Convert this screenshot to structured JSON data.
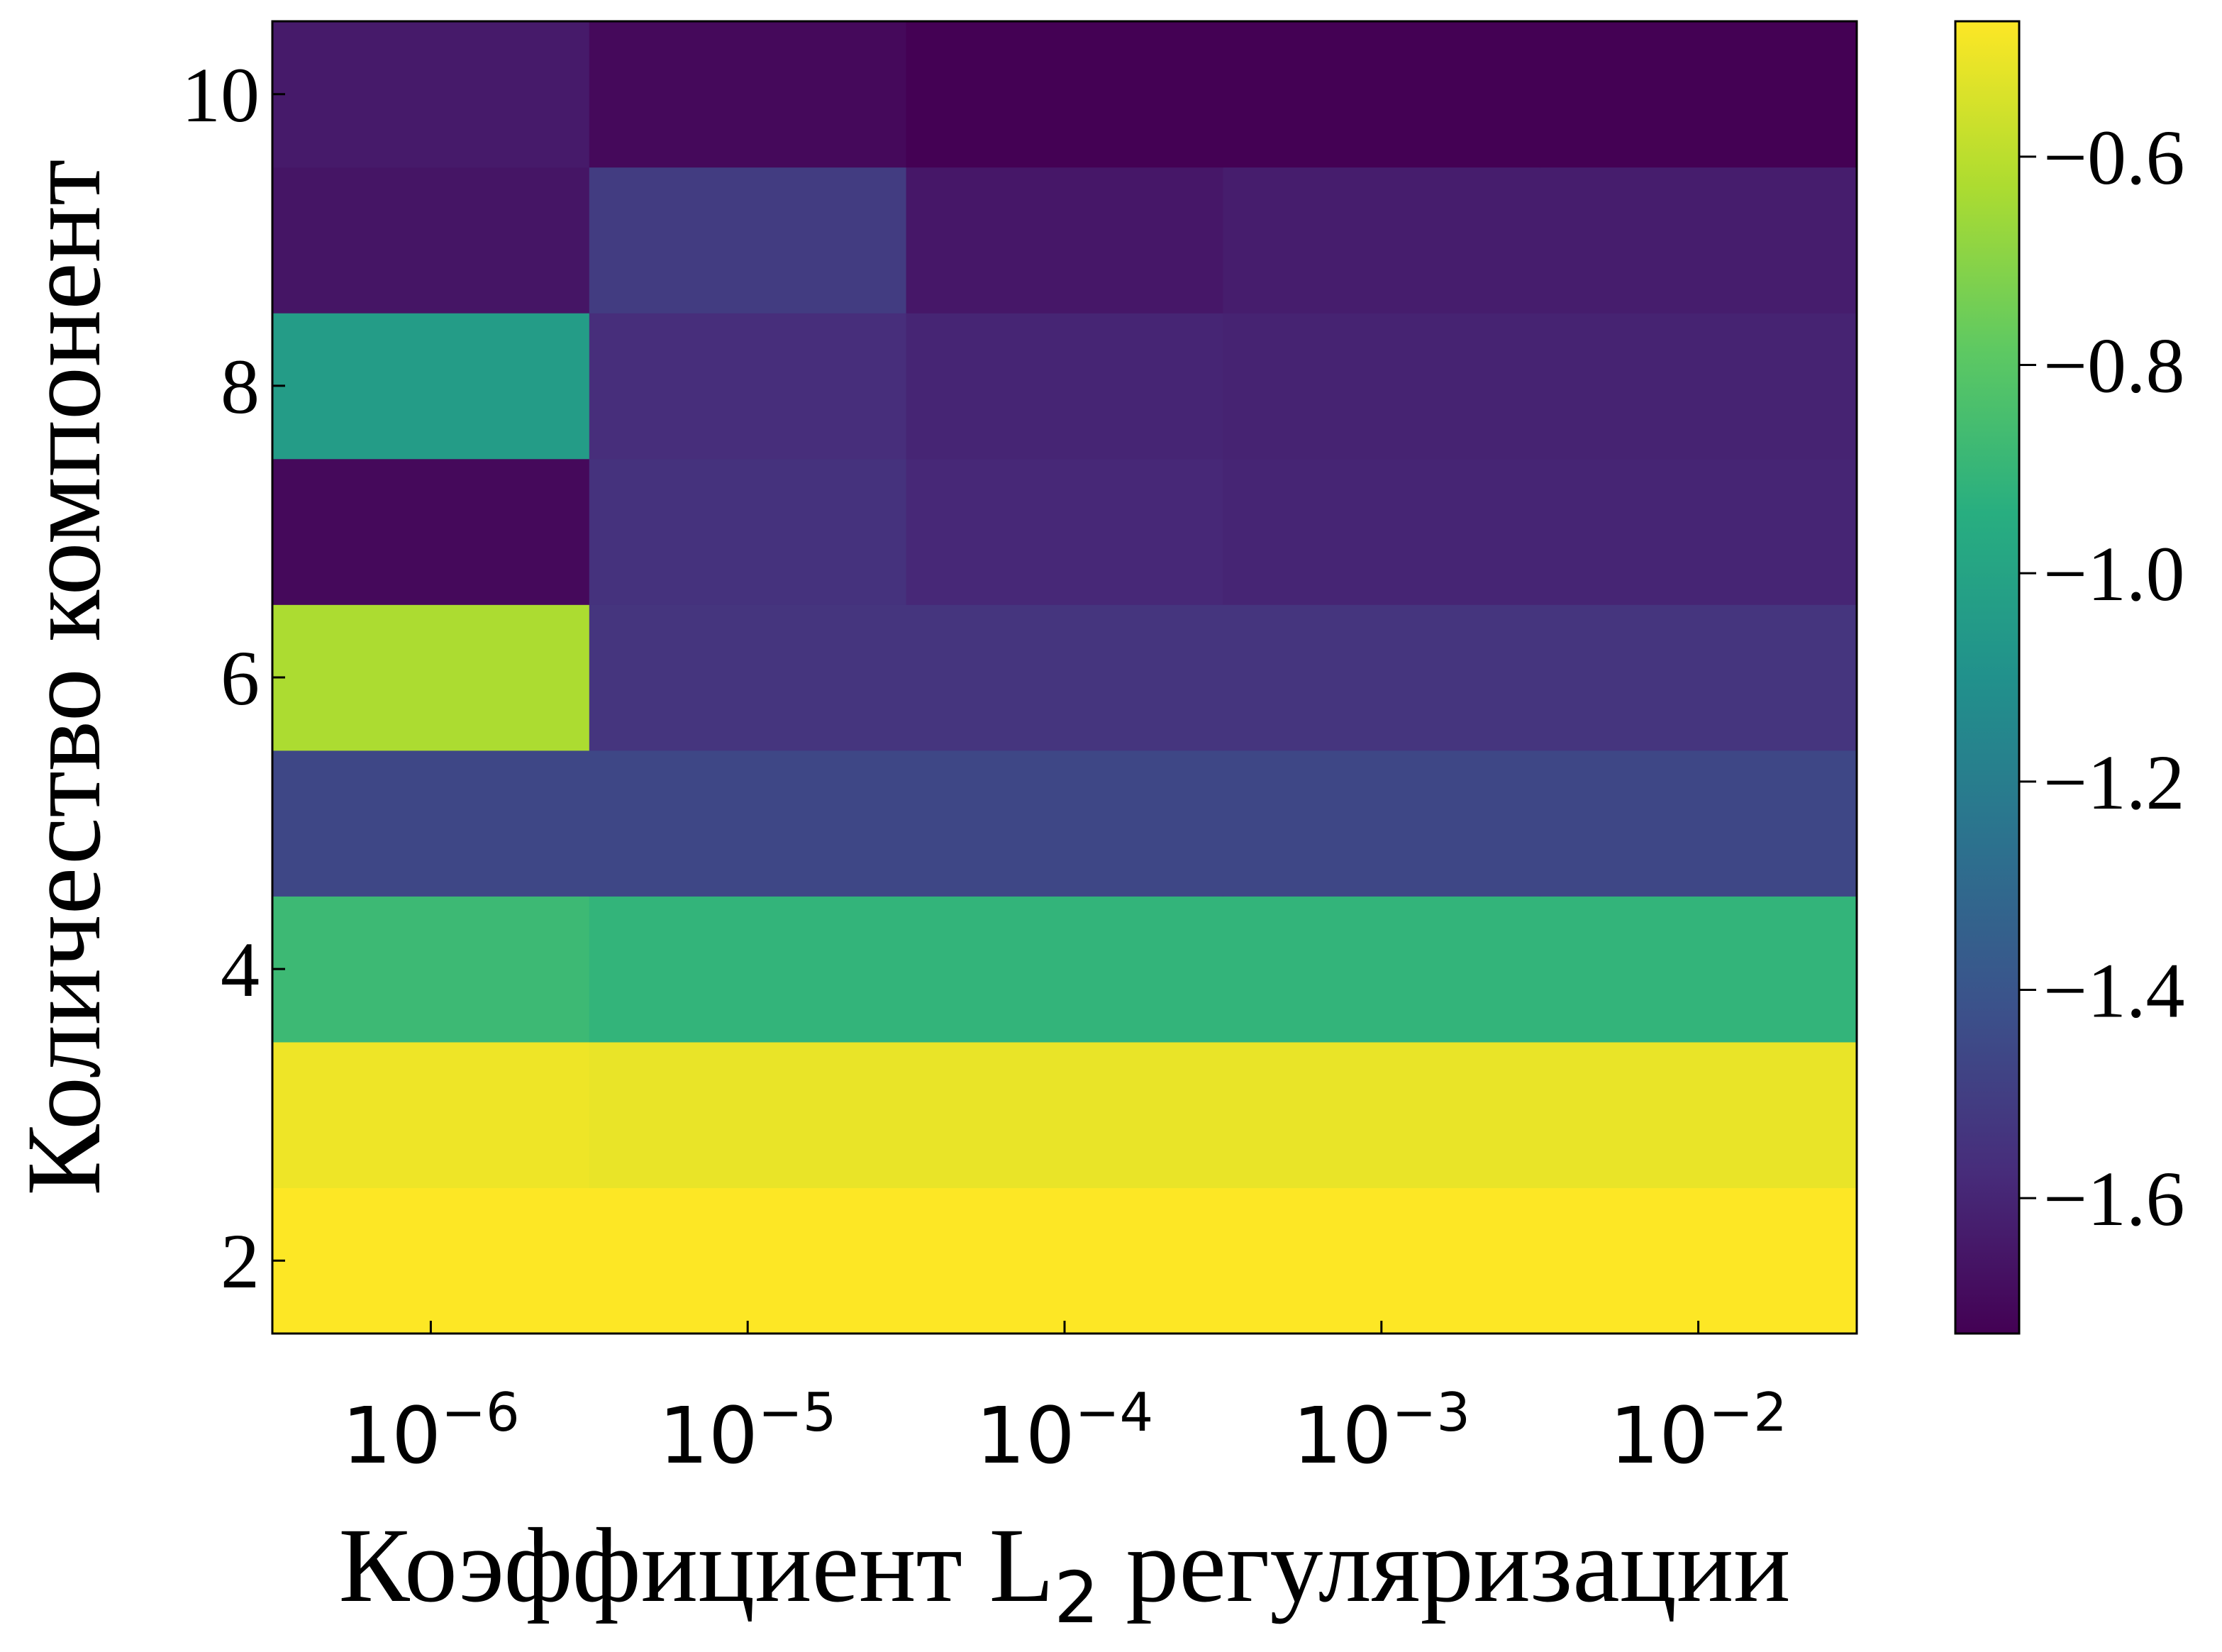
{
  "chart_data": {
    "type": "heatmap",
    "xlabel": "Коэффициент L₂ регуляризации",
    "ylabel": "Количество компонент",
    "x_categories": [
      {
        "base": "10",
        "exp": "−6"
      },
      {
        "base": "10",
        "exp": "−5"
      },
      {
        "base": "10",
        "exp": "−4"
      },
      {
        "base": "10",
        "exp": "−3"
      },
      {
        "base": "10",
        "exp": "−2"
      }
    ],
    "x_values": [
      1e-06,
      1e-05,
      0.0001,
      0.001,
      0.01
    ],
    "y_values": [
      2,
      3,
      4,
      5,
      6,
      7,
      8,
      9,
      10
    ],
    "y_ticks": [
      2,
      4,
      6,
      8,
      10
    ],
    "y_tick_labels": [
      "2",
      "4",
      "6",
      "8",
      "10"
    ],
    "values": [
      [
        -0.47,
        -0.47,
        -0.47,
        -0.47,
        -0.47
      ],
      [
        -0.5,
        -0.51,
        -0.51,
        -0.51,
        -0.51
      ],
      [
        -0.88,
        -0.91,
        -0.91,
        -0.91,
        -0.91
      ],
      [
        -1.46,
        -1.46,
        -1.46,
        -1.46,
        -1.46
      ],
      [
        -0.63,
        -1.54,
        -1.54,
        -1.54,
        -1.54
      ],
      [
        -1.7,
        -1.55,
        -1.59,
        -1.6,
        -1.6
      ],
      [
        -1.04,
        -1.57,
        -1.6,
        -1.61,
        -1.61
      ],
      [
        -1.66,
        -1.51,
        -1.65,
        -1.63,
        -1.63
      ],
      [
        -1.64,
        -1.7,
        -1.73,
        -1.73,
        -1.73
      ]
    ],
    "colormap": "viridis",
    "colorbar": {
      "vmin": -1.73,
      "vmax": -0.47,
      "ticks": [
        -0.6,
        -0.8,
        -1.0,
        -1.2,
        -1.4,
        -1.6
      ],
      "tick_labels": [
        "−0.6",
        "−0.8",
        "−1.0",
        "−1.2",
        "−1.4",
        "−1.6"
      ]
    },
    "grid": false,
    "legend": "none"
  }
}
